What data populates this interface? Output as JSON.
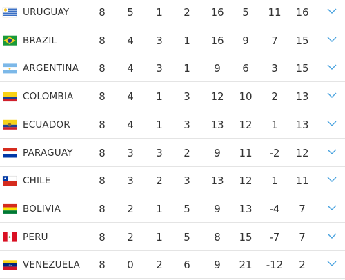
{
  "table": {
    "rows": [
      [
        "URUGUAY",
        8,
        5,
        1,
        2,
        16,
        5,
        11,
        16
      ],
      [
        "BRAZIL",
        8,
        4,
        3,
        1,
        16,
        9,
        7,
        15
      ],
      [
        "ARGENTINA",
        8,
        4,
        3,
        1,
        9,
        6,
        3,
        15
      ],
      [
        "COLOMBIA",
        8,
        4,
        1,
        3,
        12,
        10,
        2,
        13
      ],
      [
        "ECUADOR",
        8,
        4,
        1,
        3,
        13,
        12,
        1,
        13
      ],
      [
        "PARAGUAY",
        8,
        3,
        3,
        2,
        9,
        11,
        -2,
        12
      ],
      [
        "CHILE",
        8,
        3,
        2,
        3,
        13,
        12,
        1,
        11
      ],
      [
        "BOLIVIA",
        8,
        2,
        1,
        5,
        9,
        13,
        -4,
        7
      ],
      [
        "PERU",
        8,
        2,
        1,
        5,
        8,
        15,
        -7,
        7
      ],
      [
        "VENEZUELA",
        8,
        0,
        2,
        6,
        9,
        21,
        -12,
        2
      ]
    ]
  }
}
